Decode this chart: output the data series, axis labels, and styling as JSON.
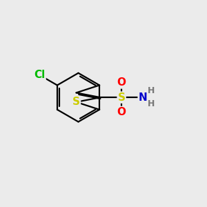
{
  "background_color": "#ebebeb",
  "bond_color": "#000000",
  "bond_width": 1.6,
  "atom_colors": {
    "S_thio": "#cccc00",
    "S_sulfo": "#cccc00",
    "Cl": "#00bb00",
    "O": "#ff0000",
    "N": "#0000cc",
    "H": "#777777",
    "C": "#000000"
  },
  "font_size_atom": 11,
  "font_size_H": 9
}
